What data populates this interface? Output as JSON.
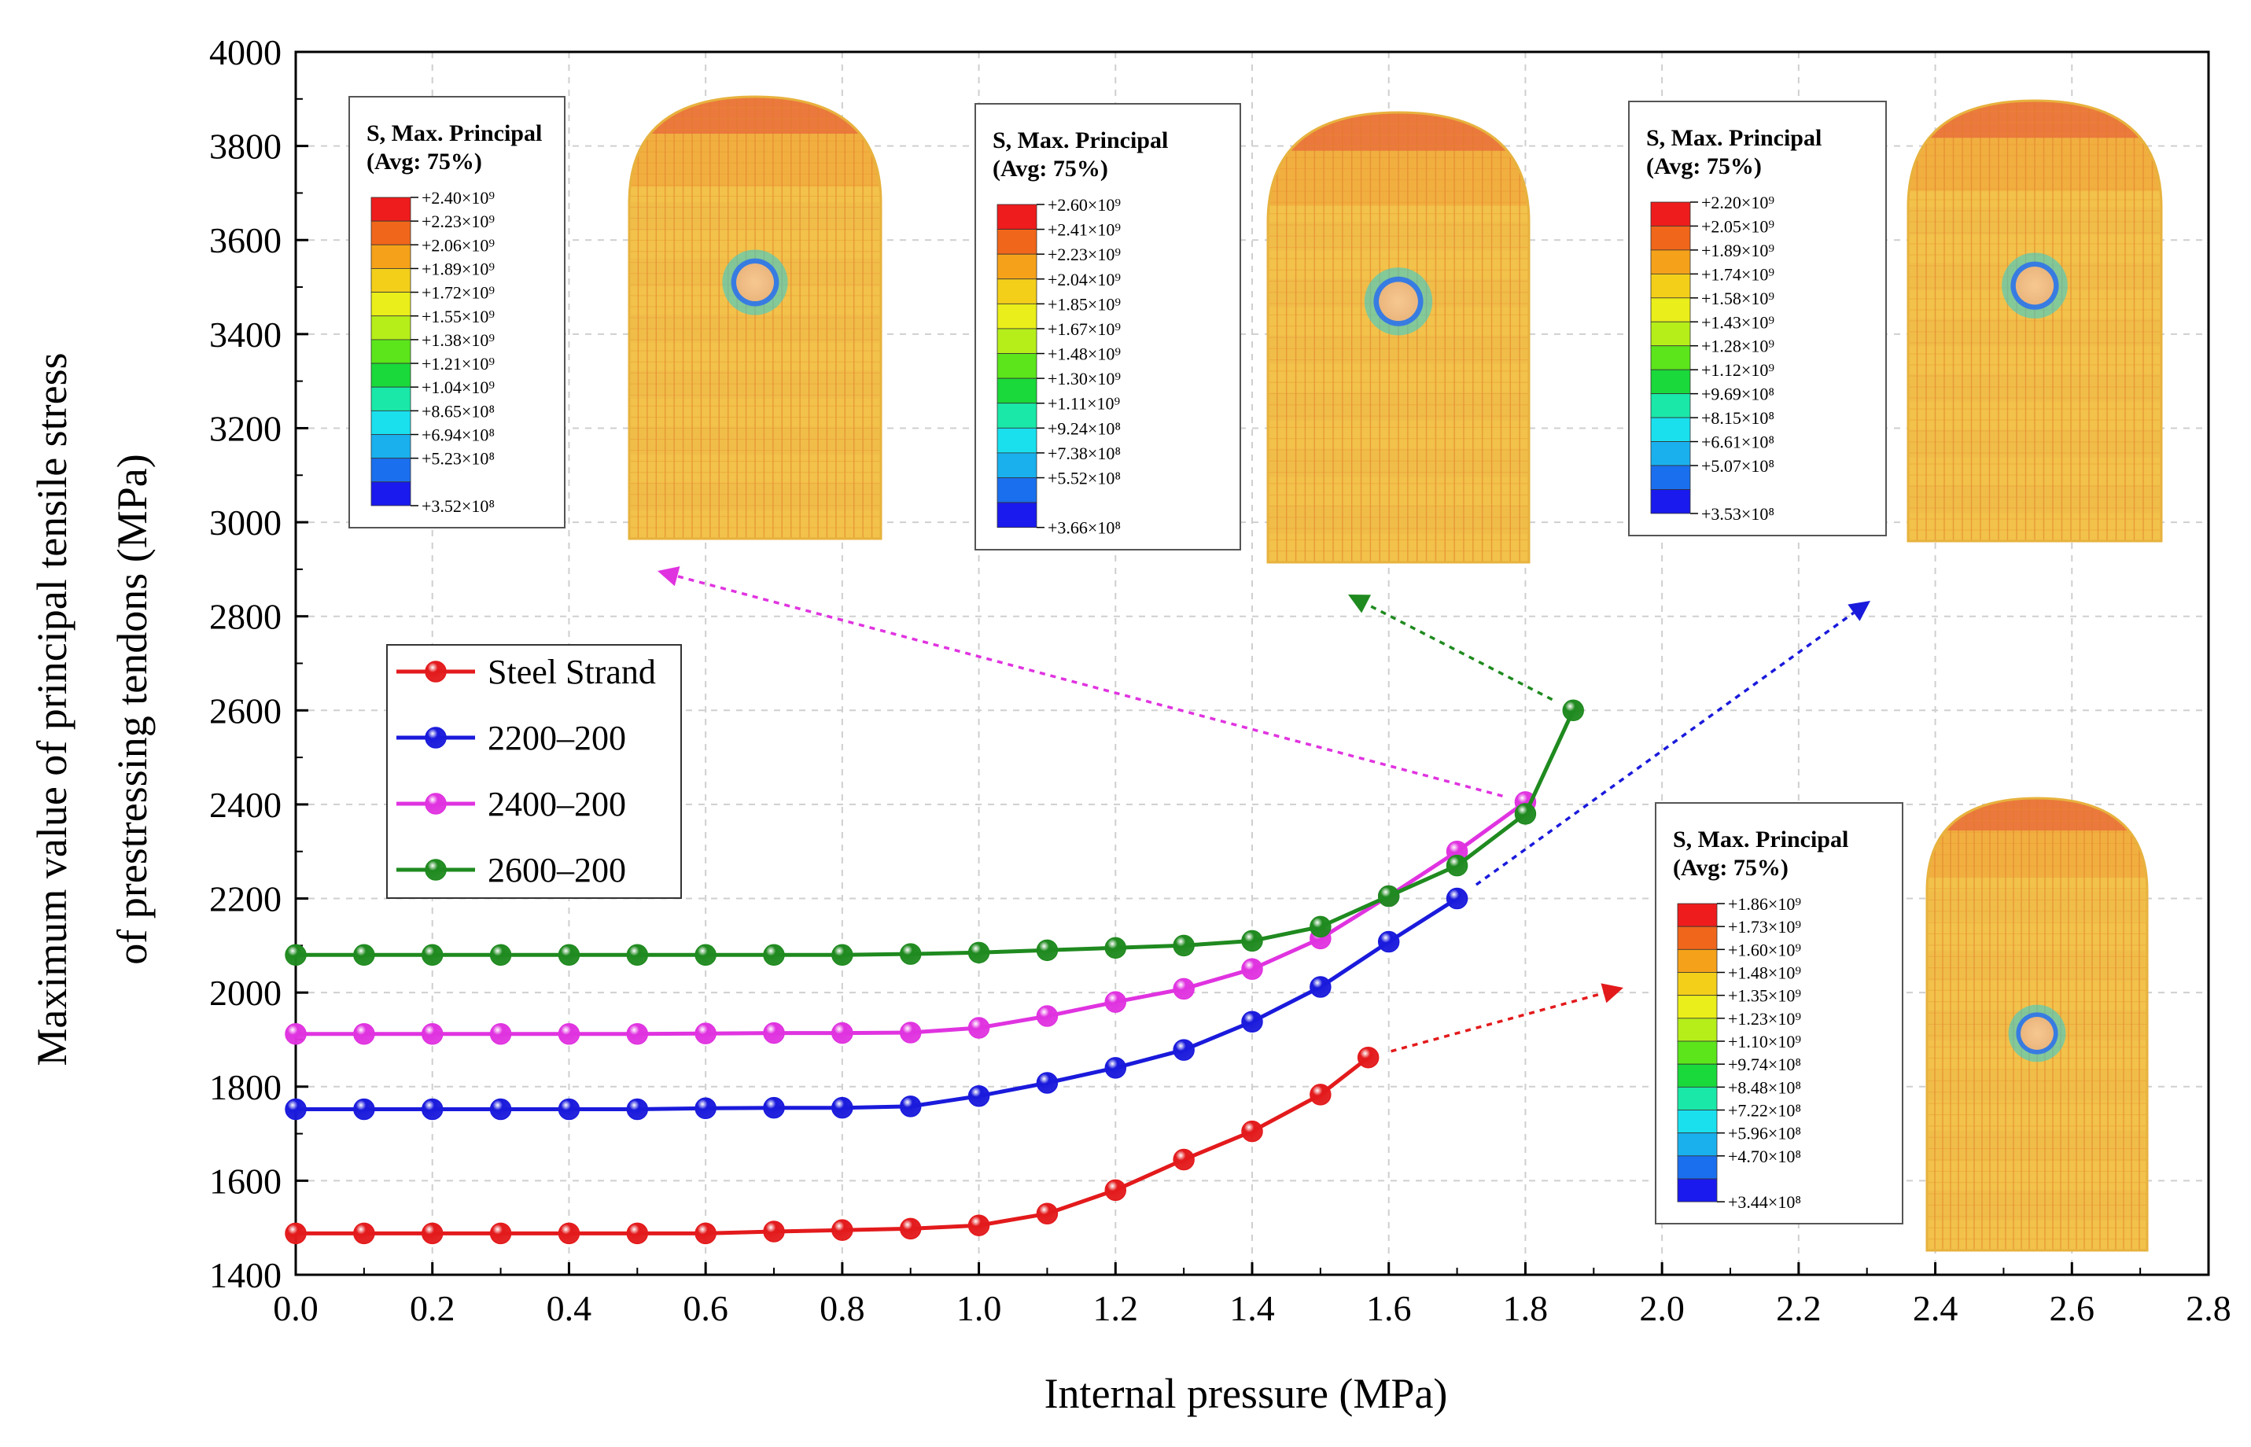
{
  "chart_data": {
    "type": "line",
    "title": "",
    "xlabel": "Internal pressure (MPa)",
    "ylabel_lines": [
      "Maximum value of principal tensile stress",
      "of prestressing tendons (MPa)"
    ],
    "xlim": [
      0.0,
      2.8
    ],
    "ylim": [
      1400,
      4000
    ],
    "x_ticks": [
      "0.0",
      "0.2",
      "0.4",
      "0.6",
      "0.8",
      "1.0",
      "1.2",
      "1.4",
      "1.6",
      "1.8",
      "2.0",
      "2.2",
      "2.4",
      "2.6",
      "2.8"
    ],
    "y_ticks": [
      "1400",
      "1600",
      "1800",
      "2000",
      "2200",
      "2400",
      "2600",
      "2800",
      "3000",
      "3200",
      "3400",
      "3600",
      "3800",
      "4000"
    ],
    "grid": true,
    "legend_position": "left-middle",
    "series": [
      {
        "name": "Steel Strand",
        "color": "#e31a1c",
        "x": [
          0.0,
          0.1,
          0.2,
          0.3,
          0.4,
          0.5,
          0.6,
          0.7,
          0.8,
          0.9,
          1.0,
          1.1,
          1.2,
          1.3,
          1.4,
          1.5,
          1.57
        ],
        "y": [
          1488,
          1488,
          1488,
          1488,
          1488,
          1488,
          1488,
          1492,
          1495,
          1498,
          1505,
          1530,
          1580,
          1645,
          1705,
          1783,
          1862
        ]
      },
      {
        "name": "2200–200",
        "color": "#1a1adc",
        "x": [
          0.0,
          0.1,
          0.2,
          0.3,
          0.4,
          0.5,
          0.6,
          0.7,
          0.8,
          0.9,
          1.0,
          1.1,
          1.2,
          1.3,
          1.4,
          1.5,
          1.6,
          1.7
        ],
        "y": [
          1752,
          1752,
          1752,
          1752,
          1752,
          1752,
          1754,
          1755,
          1755,
          1758,
          1780,
          1808,
          1840,
          1878,
          1938,
          2012,
          2108,
          2200
        ]
      },
      {
        "name": "2400–200",
        "color": "#e033e0",
        "x": [
          0.0,
          0.1,
          0.2,
          0.3,
          0.4,
          0.5,
          0.6,
          0.7,
          0.8,
          0.9,
          1.0,
          1.1,
          1.2,
          1.3,
          1.4,
          1.5,
          1.6,
          1.7,
          1.8
        ],
        "y": [
          1912,
          1912,
          1912,
          1912,
          1912,
          1912,
          1913,
          1914,
          1914,
          1915,
          1925,
          1950,
          1980,
          2008,
          2050,
          2115,
          2205,
          2300,
          2405
        ]
      },
      {
        "name": "2600–200",
        "color": "#1f8a1f",
        "x": [
          0.0,
          0.1,
          0.2,
          0.3,
          0.4,
          0.5,
          0.6,
          0.7,
          0.8,
          0.9,
          1.0,
          1.1,
          1.2,
          1.3,
          1.4,
          1.5,
          1.6,
          1.7,
          1.8,
          1.87
        ],
        "y": [
          2080,
          2080,
          2080,
          2080,
          2080,
          2080,
          2080,
          2080,
          2080,
          2082,
          2085,
          2090,
          2095,
          2100,
          2110,
          2140,
          2205,
          2270,
          2380,
          2600
        ]
      }
    ]
  },
  "insets": [
    {
      "id": "2400",
      "title_lines": [
        "S, Max. Principal",
        "(Avg: 75%)"
      ],
      "values": [
        "+2.40×10⁹",
        "+2.23×10⁹",
        "+2.06×10⁹",
        "+1.89×10⁹",
        "+1.72×10⁹",
        "+1.55×10⁹",
        "+1.38×10⁹",
        "+1.21×10⁹",
        "+1.04×10⁹",
        "+8.65×10⁸",
        "+6.94×10⁸",
        "+5.23×10⁸",
        "+3.52×10⁸"
      ],
      "arrow_color": "#e033e0"
    },
    {
      "id": "2600",
      "title_lines": [
        "S, Max. Principal",
        "(Avg: 75%)"
      ],
      "values": [
        "+2.60×10⁹",
        "+2.41×10⁹",
        "+2.23×10⁹",
        "+2.04×10⁹",
        "+1.85×10⁹",
        "+1.67×10⁹",
        "+1.48×10⁹",
        "+1.30×10⁹",
        "+1.11×10⁹",
        "+9.24×10⁸",
        "+7.38×10⁸",
        "+5.52×10⁸",
        "+3.66×10⁸"
      ],
      "arrow_color": "#1f8a1f"
    },
    {
      "id": "2200",
      "title_lines": [
        "S, Max. Principal",
        "(Avg: 75%)"
      ],
      "values": [
        "+2.20×10⁹",
        "+2.05×10⁹",
        "+1.89×10⁹",
        "+1.74×10⁹",
        "+1.58×10⁹",
        "+1.43×10⁹",
        "+1.28×10⁹",
        "+1.12×10⁹",
        "+9.69×10⁸",
        "+8.15×10⁸",
        "+6.61×10⁸",
        "+5.07×10⁸",
        "+3.53×10⁸"
      ],
      "arrow_color": "#1a1adc"
    },
    {
      "id": "steel",
      "title_lines": [
        "S, Max. Principal",
        "(Avg: 75%)"
      ],
      "values": [
        "+1.86×10⁹",
        "+1.73×10⁹",
        "+1.60×10⁹",
        "+1.48×10⁹",
        "+1.35×10⁹",
        "+1.23×10⁹",
        "+1.10×10⁹",
        "+9.74×10⁸",
        "+8.48×10⁸",
        "+7.22×10⁸",
        "+5.96×10⁸",
        "+4.70×10⁸",
        "+3.44×10⁸"
      ],
      "arrow_color": "#e31a1c"
    }
  ],
  "contour_colors": [
    "#ee1c1c",
    "#f0661a",
    "#f5a21a",
    "#f3cf1a",
    "#eaee1a",
    "#b6ee1a",
    "#5be51a",
    "#1ad93a",
    "#1ae8a8",
    "#1ae0ee",
    "#1ab0ee",
    "#1a6fee",
    "#1a1aee"
  ]
}
